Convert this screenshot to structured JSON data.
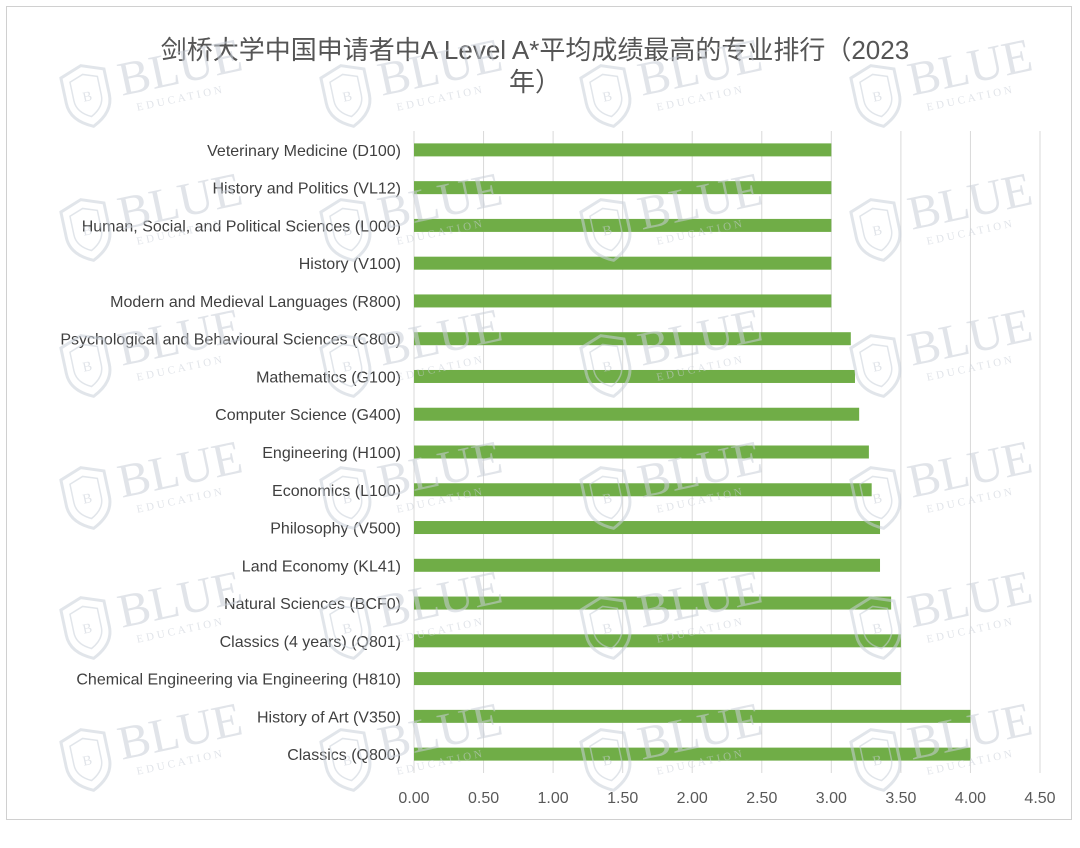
{
  "chart_data": {
    "type": "bar",
    "orientation": "horizontal",
    "title": "剑桥大学中国申请者中A Level A*平均成绩最高的专业排行（2023年）",
    "categories": [
      "Veterinary Medicine (D100)",
      "History and Politics (VL12)",
      "Human, Social, and Political Sciences (L000)",
      "History (V100)",
      "Modern and Medieval Languages (R800)",
      "Psychological and Behavioural Sciences (C800)",
      "Mathematics (G100)",
      "Computer Science (G400)",
      "Engineering (H100)",
      "Economics (L100)",
      "Philosophy (V500)",
      "Land Economy (KL41)",
      "Natural Sciences (BCF0)",
      "Classics (4 years) (Q801)",
      "Chemical Engineering via Engineering (H810)",
      "History of Art (V350)",
      "Classics (Q800)"
    ],
    "values": [
      3.0,
      3.0,
      3.0,
      3.0,
      3.0,
      3.14,
      3.17,
      3.2,
      3.27,
      3.29,
      3.35,
      3.35,
      3.43,
      3.5,
      3.5,
      4.0,
      4.0
    ],
    "xlim": [
      0,
      4.5
    ],
    "x_ticks": [
      "0.00",
      "0.50",
      "1.00",
      "1.50",
      "2.00",
      "2.50",
      "3.00",
      "3.50",
      "4.00",
      "4.50"
    ],
    "x_tick_values": [
      0,
      0.5,
      1,
      1.5,
      2,
      2.5,
      3,
      3.5,
      4,
      4.5
    ],
    "grid": true,
    "legend": "none",
    "bar_color": "#70ad47",
    "grid_color": "#d9d9d9"
  },
  "watermark": {
    "text": "BLUE",
    "subtext": "EDUCATION",
    "badge_letter": "B",
    "icon": "shield-logo-icon"
  }
}
